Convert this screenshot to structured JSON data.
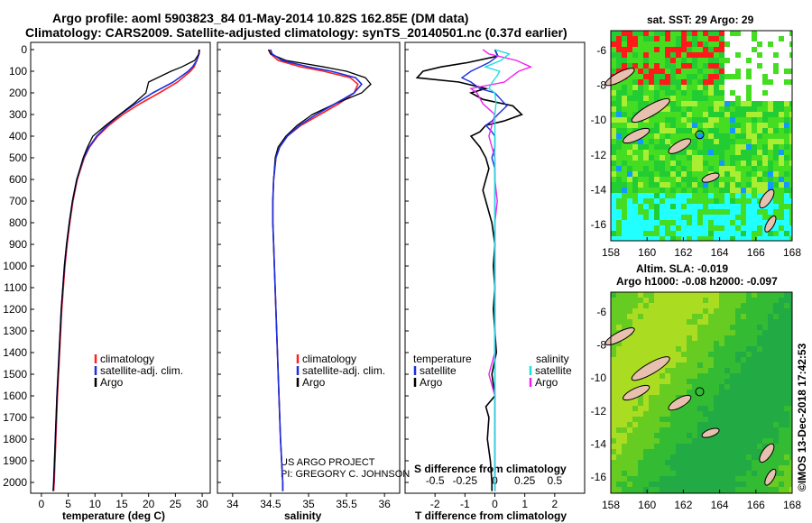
{
  "title": {
    "line1": "Argo profile: aoml 5903823_84 01-May-2014 10.82S 162.85E (DM data)",
    "line2": "Climatology: CARS2009. Satellite-adjusted climatology: synTS_20140501.nc (0.37d earlier)"
  },
  "colors": {
    "climatology": "#ff2020",
    "satellite": "#1a2fe0",
    "argo": "#000000",
    "salinity_diff": "#ee22ee",
    "satellite_salinity": "#22dddd"
  },
  "depth_axis": {
    "range": [
      0,
      2050
    ],
    "ticks": [
      0,
      100,
      200,
      300,
      400,
      500,
      600,
      700,
      800,
      900,
      1000,
      1100,
      1200,
      1300,
      1400,
      1500,
      1600,
      1700,
      1800,
      1900,
      2000
    ]
  },
  "panel_temperature": {
    "xlabel": "temperature (deg C)",
    "xlim": [
      -2,
      31.5
    ],
    "ticks": [
      "0",
      "5",
      "10",
      "15",
      "20",
      "25",
      "30"
    ],
    "legend": [
      "climatology",
      "satellite-adj. clim.",
      "Argo"
    ]
  },
  "panel_salinity": {
    "xlabel": "salinity",
    "xlim": [
      33.8,
      36.2
    ],
    "ticks": [
      "34",
      "34.5",
      "35",
      "35.5",
      "36"
    ],
    "legend": [
      "climatology",
      "satellite-adj. clim.",
      "Argo"
    ],
    "credit1": "US ARGO PROJECT",
    "credit2": "PI: GREGORY C. JOHNSON"
  },
  "panel_difference": {
    "xlabel": "T difference from climatology",
    "xlabel_top": "S difference from climatology",
    "xlim": [
      -3,
      3
    ],
    "bottom_ticks": [
      "-2",
      "-1",
      "0",
      "1",
      "2"
    ],
    "top_ticks": [
      "-0.5",
      "-0.25",
      "0",
      "0.25",
      "0.5"
    ],
    "legend_t_title": "temperature",
    "legend_s_title": "salinity",
    "legend_t": [
      "satellite",
      "Argo"
    ],
    "legend_s": [
      "satellite",
      "Argo"
    ]
  },
  "map_sst": {
    "title": "sat. SST: 29 Argo: 29",
    "xticks": [
      "158",
      "160",
      "162",
      "164",
      "166",
      "168"
    ],
    "yticks": [
      "-6",
      "-8",
      "-10",
      "-12",
      "-14",
      "-16"
    ]
  },
  "map_sla": {
    "title1": "Altim. SLA: -0.019",
    "title2": "Argo h1000: -0.08 h2000: -0.097",
    "xticks": [
      "158",
      "160",
      "162",
      "164",
      "166",
      "168"
    ],
    "yticks": [
      "-6",
      "-8",
      "-10",
      "-12",
      "-14",
      "-16"
    ]
  },
  "credit_side": "©IMOS 13-Dec-2018 17:42:53",
  "chart_data": {
    "type": "line",
    "y_is_depth": true,
    "temperature": {
      "depth": [
        0,
        20,
        50,
        80,
        100,
        150,
        200,
        250,
        300,
        350,
        400,
        450,
        500,
        600,
        700,
        800,
        900,
        1000,
        1200,
        1400,
        1600,
        1800,
        2000,
        2040
      ],
      "climatology": [
        29.4,
        29.4,
        29.0,
        28.5,
        27.8,
        25.4,
        22.0,
        18.4,
        15.2,
        12.6,
        10.5,
        9.0,
        8.0,
        6.7,
        5.9,
        5.3,
        4.8,
        4.4,
        3.8,
        3.4,
        3.0,
        2.7,
        2.4,
        2.3
      ],
      "satellite": [
        29.5,
        29.4,
        29.0,
        28.2,
        27.4,
        24.6,
        20.8,
        17.6,
        14.7,
        12.3,
        10.3,
        8.9,
        7.9,
        6.6,
        5.8,
        5.2,
        4.7,
        4.3,
        3.7,
        3.3,
        2.9,
        2.6,
        2.3,
        2.2
      ],
      "argo": [
        29.5,
        29.4,
        28.6,
        26.2,
        24.2,
        20.0,
        19.5,
        17.2,
        14.6,
        12.0,
        9.6,
        8.6,
        7.8,
        6.6,
        5.8,
        5.2,
        4.7,
        4.3,
        3.7,
        3.3,
        2.9,
        2.6,
        2.3,
        2.2
      ]
    },
    "salinity": {
      "depth": [
        0,
        20,
        50,
        80,
        100,
        130,
        160,
        200,
        250,
        300,
        350,
        400,
        450,
        500,
        600,
        700,
        800,
        900,
        1000,
        1200,
        1400,
        1600,
        1800,
        2000,
        2040
      ],
      "climatology": [
        34.48,
        34.5,
        34.6,
        34.9,
        35.2,
        35.55,
        35.65,
        35.6,
        35.4,
        35.15,
        34.9,
        34.72,
        34.62,
        34.57,
        34.54,
        34.53,
        34.53,
        34.54,
        34.55,
        34.57,
        34.59,
        34.61,
        34.63,
        34.66,
        34.66
      ],
      "satellite": [
        34.5,
        34.52,
        34.65,
        35.0,
        35.3,
        35.62,
        35.7,
        35.6,
        35.35,
        35.1,
        34.88,
        34.72,
        34.62,
        34.57,
        34.54,
        34.53,
        34.53,
        34.54,
        34.55,
        34.57,
        34.59,
        34.61,
        34.63,
        34.66,
        34.66
      ],
      "argo": [
        34.47,
        34.5,
        34.7,
        35.2,
        35.5,
        35.75,
        35.82,
        35.7,
        35.35,
        35.05,
        34.85,
        34.7,
        34.6,
        34.56,
        34.54,
        34.53,
        34.53,
        34.54,
        34.55,
        34.57,
        34.59,
        34.61,
        34.63,
        34.66,
        34.66
      ]
    },
    "t_difference": {
      "depth": [
        0,
        30,
        60,
        80,
        100,
        130,
        150,
        180,
        200,
        230,
        260,
        300,
        330,
        350,
        380,
        400,
        450,
        500,
        550,
        600,
        650,
        700,
        800,
        900,
        1000,
        1100,
        1200,
        1300,
        1400,
        1500,
        1600,
        1650,
        1700,
        1800,
        1900,
        2000,
        2040
      ],
      "satellite": [
        0.0,
        0.1,
        -0.2,
        -0.5,
        -0.8,
        -1.1,
        -0.8,
        -0.5,
        0.0,
        0.2,
        0.4,
        0.1,
        -0.1,
        -0.3,
        -0.1,
        0.0,
        0.0,
        -0.1,
        0.0,
        0.0,
        0.0,
        0.0,
        0.0,
        0.0,
        0.0,
        0.0,
        0.0,
        0.0,
        0.0,
        0.0,
        0.0,
        0.0,
        0.0,
        0.0,
        0.0,
        0.0,
        0.0
      ],
      "argo": [
        0.0,
        0.1,
        -0.9,
        -1.8,
        -2.4,
        -2.6,
        -1.2,
        -0.3,
        -0.8,
        -0.4,
        0.6,
        0.9,
        0.3,
        -0.3,
        -0.5,
        -0.8,
        -0.5,
        -0.3,
        -0.2,
        -0.3,
        -0.4,
        -0.3,
        -0.1,
        0.0,
        -0.05,
        0.0,
        -0.05,
        0.0,
        0.05,
        -0.1,
        0.0,
        -0.3,
        -0.2,
        -0.25,
        -0.15,
        -0.1,
        -0.1
      ]
    },
    "s_difference": {
      "depth": [
        0,
        20,
        50,
        80,
        100,
        120,
        150,
        180,
        200,
        250,
        300,
        400,
        500,
        600,
        700,
        800,
        900,
        1000,
        1200,
        1400,
        1500,
        1600,
        1800,
        2000,
        2040
      ],
      "satellite": [
        0.0,
        0.12,
        0.05,
        -0.08,
        0.04,
        0.02,
        -0.02,
        -0.05,
        0.0,
        0.01,
        0.0,
        0.0,
        0.0,
        0.0,
        0.0,
        0.0,
        0.0,
        0.0,
        0.0,
        0.0,
        0.0,
        0.0,
        0.0,
        0.0,
        0.0
      ],
      "argo": [
        -0.1,
        -0.05,
        0.18,
        0.3,
        0.2,
        0.15,
        0.08,
        -0.2,
        -0.15,
        -0.1,
        0.0,
        -0.05,
        0.0,
        0.0,
        0.02,
        0.0,
        0.0,
        0.0,
        0.0,
        0.0,
        -0.05,
        0.0,
        0.0,
        0.0,
        0.0
      ]
    }
  }
}
